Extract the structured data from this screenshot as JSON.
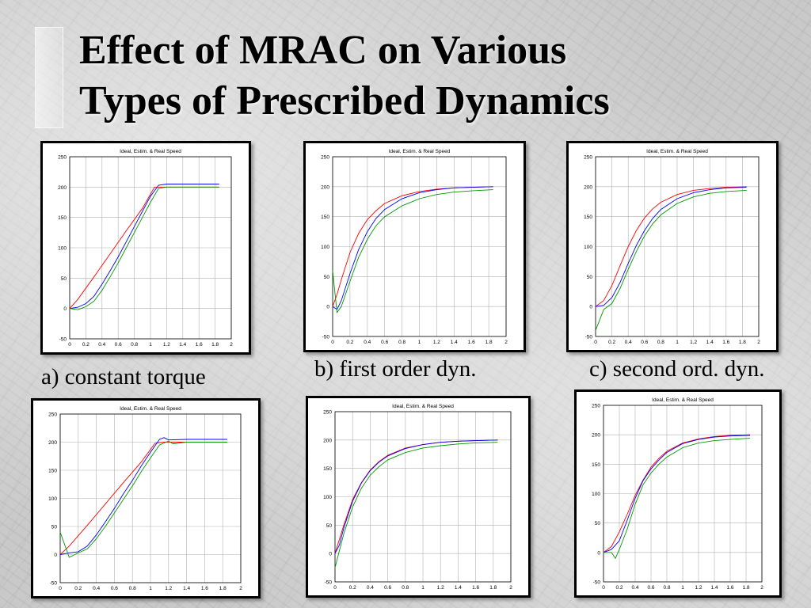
{
  "slide": {
    "title_lines": [
      "Effect of MRAC on Various",
      "Types of Prescribed Dynamics"
    ],
    "captions": {
      "a": "a) constant torque",
      "b": "b) first order dyn.",
      "c": "c) second ord. dyn."
    }
  },
  "colors": {
    "ideal": "#ff0000",
    "estimated": "#0000ff",
    "real": "#009900",
    "grid": "#b0b0b0"
  },
  "chart_data": [
    {
      "id": "constant-torque-top",
      "type": "line",
      "title": "Ideal, Estim. & Real Speed",
      "xlim": [
        0,
        2
      ],
      "ylim": [
        -50,
        250
      ],
      "xticks": [
        0,
        0.2,
        0.4,
        0.6,
        0.8,
        1,
        1.2,
        1.4,
        1.6,
        1.8,
        2
      ],
      "xtick_labels": [
        "0",
        "0.2",
        "0.4",
        "0.6",
        "0.8",
        "1",
        "1.2",
        "1.4",
        "1.6",
        "1.8",
        "2"
      ],
      "yticks": [
        -50,
        0,
        50,
        100,
        150,
        200,
        250
      ],
      "ytick_labels": [
        "-50",
        "0",
        "50",
        "100",
        "150",
        "200",
        "250"
      ],
      "grid": true,
      "series": [
        {
          "key": "ideal",
          "x": [
            0,
            0.1,
            0.3,
            0.5,
            0.7,
            0.9,
            1.05,
            1.2,
            1.4,
            1.6,
            1.85
          ],
          "y": [
            0,
            15,
            52,
            90,
            128,
            165,
            200,
            200,
            200,
            200,
            200
          ]
        },
        {
          "key": "estimated",
          "x": [
            0,
            0.1,
            0.2,
            0.3,
            0.4,
            0.5,
            0.6,
            0.7,
            0.8,
            0.9,
            1.0,
            1.1,
            1.2,
            1.4,
            1.6,
            1.85
          ],
          "y": [
            0,
            2,
            8,
            20,
            40,
            62,
            85,
            110,
            135,
            160,
            185,
            203,
            205,
            205,
            205,
            205
          ]
        },
        {
          "key": "real",
          "x": [
            0,
            0.1,
            0.2,
            0.3,
            0.4,
            0.5,
            0.6,
            0.7,
            0.8,
            0.9,
            1.0,
            1.1,
            1.2,
            1.4,
            1.6,
            1.85
          ],
          "y": [
            0,
            -2,
            3,
            12,
            30,
            52,
            75,
            100,
            125,
            150,
            175,
            198,
            200,
            200,
            200,
            200
          ]
        }
      ]
    },
    {
      "id": "first-order-top",
      "type": "line",
      "title": "Ideal, Estim. & Real Speed",
      "xlim": [
        0,
        2
      ],
      "ylim": [
        -50,
        250
      ],
      "xticks": [
        0,
        0.2,
        0.4,
        0.6,
        0.8,
        1,
        1.2,
        1.4,
        1.6,
        1.8,
        2
      ],
      "xtick_labels": [
        "0",
        "0.2",
        "0.4",
        "0.6",
        "0.8",
        "1",
        "1.2",
        "1.4",
        "1.6",
        "1.8",
        "2"
      ],
      "yticks": [
        -50,
        0,
        50,
        100,
        150,
        200,
        250
      ],
      "ytick_labels": [
        "-50",
        "0",
        "50",
        "100",
        "150",
        "200",
        "250"
      ],
      "grid": true,
      "series": [
        {
          "key": "ideal",
          "x": [
            0,
            0.05,
            0.1,
            0.2,
            0.3,
            0.4,
            0.5,
            0.6,
            0.8,
            1.0,
            1.2,
            1.4,
            1.6,
            1.85
          ],
          "y": [
            0,
            20,
            45,
            90,
            122,
            145,
            160,
            172,
            185,
            192,
            196,
            198,
            199,
            200
          ]
        },
        {
          "key": "estimated",
          "x": [
            0,
            0.05,
            0.1,
            0.2,
            0.3,
            0.4,
            0.5,
            0.6,
            0.8,
            1.0,
            1.2,
            1.4,
            1.6,
            1.85
          ],
          "y": [
            0,
            -5,
            10,
            55,
            95,
            125,
            147,
            162,
            180,
            190,
            195,
            198,
            199,
            200
          ]
        },
        {
          "key": "real",
          "x": [
            0,
            0.05,
            0.1,
            0.2,
            0.3,
            0.4,
            0.5,
            0.6,
            0.8,
            1.0,
            1.2,
            1.4,
            1.6,
            1.85
          ],
          "y": [
            60,
            -10,
            0,
            42,
            82,
            112,
            135,
            150,
            168,
            180,
            187,
            191,
            193,
            195
          ]
        }
      ]
    },
    {
      "id": "second-order-top",
      "type": "line",
      "title": "Ideal, Estim. & Real Speed",
      "xlim": [
        0,
        2
      ],
      "ylim": [
        -50,
        250
      ],
      "xticks": [
        0,
        0.2,
        0.4,
        0.6,
        0.8,
        1,
        1.2,
        1.4,
        1.6,
        1.8,
        2
      ],
      "xtick_labels": [
        "0",
        "0.2",
        "0.4",
        "0.6",
        "0.8",
        "1",
        "1.2",
        "1.4",
        "1.6",
        "1.8",
        "2"
      ],
      "yticks": [
        -50,
        0,
        50,
        100,
        150,
        200,
        250
      ],
      "ytick_labels": [
        "-50",
        "0",
        "50",
        "100",
        "150",
        "200",
        "250"
      ],
      "grid": true,
      "series": [
        {
          "key": "ideal",
          "x": [
            0,
            0.1,
            0.2,
            0.3,
            0.4,
            0.5,
            0.6,
            0.7,
            0.8,
            1.0,
            1.2,
            1.4,
            1.6,
            1.85
          ],
          "y": [
            0,
            10,
            35,
            68,
            100,
            127,
            148,
            163,
            174,
            187,
            194,
            197,
            199,
            200
          ]
        },
        {
          "key": "estimated",
          "x": [
            0,
            0.1,
            0.2,
            0.3,
            0.4,
            0.5,
            0.6,
            0.7,
            0.8,
            1.0,
            1.2,
            1.4,
            1.6,
            1.85
          ],
          "y": [
            0,
            2,
            15,
            40,
            72,
            102,
            127,
            147,
            162,
            180,
            190,
            195,
            198,
            199
          ]
        },
        {
          "key": "real",
          "x": [
            0,
            0.1,
            0.2,
            0.3,
            0.4,
            0.5,
            0.6,
            0.7,
            0.8,
            1.0,
            1.2,
            1.4,
            1.6,
            1.85
          ],
          "y": [
            -40,
            -5,
            5,
            30,
            62,
            92,
            118,
            138,
            153,
            172,
            183,
            189,
            192,
            194
          ]
        }
      ]
    },
    {
      "id": "constant-torque-bottom",
      "type": "line",
      "title": "Ideal, Estim. & Real Speed",
      "xlim": [
        0,
        2
      ],
      "ylim": [
        -50,
        250
      ],
      "xticks": [
        0,
        0.2,
        0.4,
        0.6,
        0.8,
        1,
        1.2,
        1.4,
        1.6,
        1.8,
        2
      ],
      "xtick_labels": [
        "0",
        "0.2",
        "0.4",
        "0.6",
        "0.8",
        "1",
        "1.2",
        "1.4",
        "1.6",
        "1.8",
        "2"
      ],
      "yticks": [
        -50,
        0,
        50,
        100,
        150,
        200,
        250
      ],
      "ytick_labels": [
        "-50",
        "0",
        "50",
        "100",
        "150",
        "200",
        "250"
      ],
      "grid": true,
      "series": [
        {
          "key": "ideal",
          "x": [
            0,
            0.1,
            0.3,
            0.5,
            0.7,
            0.9,
            1.05,
            1.15,
            1.2,
            1.4,
            1.6,
            1.85
          ],
          "y": [
            0,
            15,
            52,
            90,
            128,
            165,
            198,
            200,
            200,
            200,
            200,
            200
          ]
        },
        {
          "key": "estimated",
          "x": [
            0,
            0.1,
            0.2,
            0.3,
            0.4,
            0.5,
            0.6,
            0.7,
            0.8,
            0.9,
            1.0,
            1.1,
            1.15,
            1.2,
            1.4,
            1.6,
            1.85
          ],
          "y": [
            0,
            3,
            5,
            15,
            35,
            58,
            82,
            108,
            132,
            158,
            182,
            205,
            208,
            204,
            205,
            205,
            205
          ]
        },
        {
          "key": "real",
          "x": [
            0,
            0.1,
            0.2,
            0.3,
            0.4,
            0.5,
            0.6,
            0.7,
            0.8,
            0.9,
            1.0,
            1.1,
            1.2,
            1.25,
            1.4,
            1.6,
            1.85
          ],
          "y": [
            40,
            -5,
            3,
            10,
            28,
            50,
            74,
            98,
            122,
            148,
            172,
            195,
            202,
            197,
            200,
            200,
            200
          ]
        }
      ]
    },
    {
      "id": "first-order-bottom",
      "type": "line",
      "title": "Ideal, Estim. & Real Speed",
      "xlim": [
        0,
        2
      ],
      "ylim": [
        -50,
        250
      ],
      "xticks": [
        0,
        0.2,
        0.4,
        0.6,
        0.8,
        1,
        1.2,
        1.4,
        1.6,
        1.8,
        2
      ],
      "xtick_labels": [
        "0",
        "0.2",
        "0.4",
        "0.6",
        "0.8",
        "1",
        "1.2",
        "1.4",
        "1.6",
        "1.8",
        "2"
      ],
      "yticks": [
        -50,
        0,
        50,
        100,
        150,
        200,
        250
      ],
      "ytick_labels": [
        "-50",
        "0",
        "50",
        "100",
        "150",
        "200",
        "250"
      ],
      "grid": true,
      "series": [
        {
          "key": "ideal",
          "x": [
            0,
            0.05,
            0.1,
            0.2,
            0.3,
            0.4,
            0.5,
            0.6,
            0.8,
            1.0,
            1.2,
            1.4,
            1.6,
            1.85
          ],
          "y": [
            0,
            25,
            50,
            95,
            125,
            147,
            162,
            173,
            186,
            192,
            196,
            198,
            199,
            200
          ]
        },
        {
          "key": "estimated",
          "x": [
            0,
            0.05,
            0.1,
            0.2,
            0.3,
            0.4,
            0.5,
            0.6,
            0.8,
            1.0,
            1.2,
            1.4,
            1.6,
            1.85
          ],
          "y": [
            0,
            15,
            45,
            92,
            124,
            146,
            161,
            172,
            185,
            192,
            196,
            198,
            199,
            200
          ]
        },
        {
          "key": "real",
          "x": [
            0,
            0.05,
            0.1,
            0.2,
            0.3,
            0.4,
            0.5,
            0.6,
            0.8,
            1.0,
            1.2,
            1.4,
            1.6,
            1.85
          ],
          "y": [
            -25,
            5,
            35,
            82,
            115,
            138,
            153,
            165,
            178,
            186,
            190,
            193,
            195,
            196
          ]
        }
      ]
    },
    {
      "id": "second-order-bottom",
      "type": "line",
      "title": "Ideal, Estim. & Real Speed",
      "xlim": [
        0,
        2
      ],
      "ylim": [
        -50,
        250
      ],
      "xticks": [
        0,
        0.2,
        0.4,
        0.6,
        0.8,
        1,
        1.2,
        1.4,
        1.6,
        1.8,
        2
      ],
      "xtick_labels": [
        "0",
        "0.2",
        "0.4",
        "0.6",
        "0.8",
        "1",
        "1.2",
        "1.4",
        "1.6",
        "1.8",
        "2"
      ],
      "yticks": [
        -50,
        0,
        50,
        100,
        150,
        200,
        250
      ],
      "ytick_labels": [
        "-50",
        "0",
        "50",
        "100",
        "150",
        "200",
        "250"
      ],
      "grid": true,
      "series": [
        {
          "key": "ideal",
          "x": [
            0,
            0.1,
            0.2,
            0.3,
            0.4,
            0.5,
            0.6,
            0.7,
            0.8,
            1.0,
            1.2,
            1.4,
            1.6,
            1.85
          ],
          "y": [
            0,
            10,
            35,
            65,
            97,
            123,
            145,
            160,
            172,
            186,
            193,
            197,
            199,
            200
          ]
        },
        {
          "key": "estimated",
          "x": [
            0,
            0.1,
            0.2,
            0.3,
            0.4,
            0.5,
            0.6,
            0.7,
            0.8,
            1.0,
            1.2,
            1.4,
            1.6,
            1.85
          ],
          "y": [
            0,
            5,
            20,
            55,
            92,
            122,
            142,
            157,
            170,
            185,
            192,
            196,
            198,
            199
          ]
        },
        {
          "key": "real",
          "x": [
            0,
            0.1,
            0.15,
            0.2,
            0.3,
            0.4,
            0.5,
            0.6,
            0.7,
            0.8,
            1.0,
            1.2,
            1.4,
            1.6,
            1.85
          ],
          "y": [
            0,
            0,
            -10,
            5,
            40,
            82,
            115,
            135,
            150,
            162,
            178,
            186,
            190,
            192,
            194
          ]
        }
      ]
    }
  ]
}
